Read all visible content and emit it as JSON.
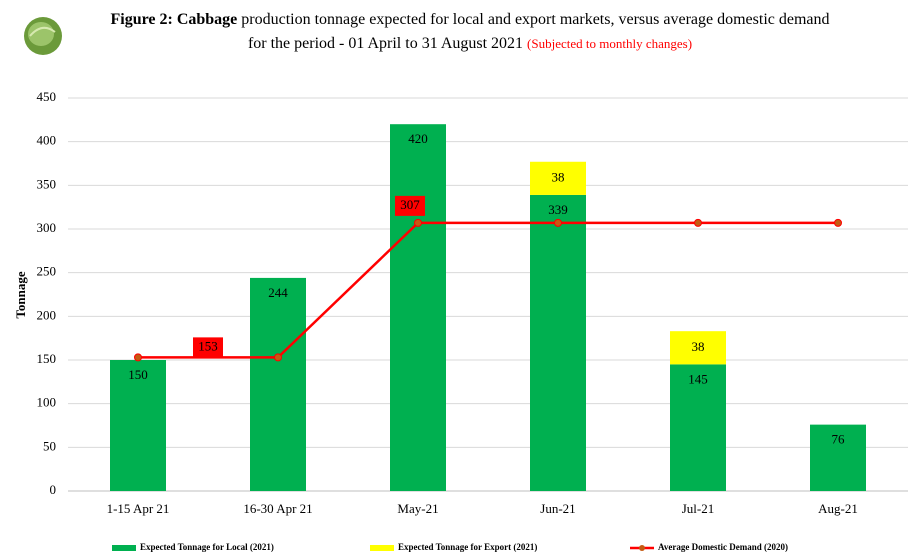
{
  "chart_data": {
    "type": "bar",
    "title": {
      "prefix": "Figure 2: Cabbage",
      "text": "production tonnage expected for local and export markets, versus average domestic demand for the period - 01 April to 31 August 2021",
      "note": "(Subjected to monthly changes)"
    },
    "y_label": "Tonnage",
    "categories": [
      "1-15 Apr 21",
      "16-30 Apr 21",
      "May-21",
      "Jun-21",
      "Jul-21",
      "Aug-21"
    ],
    "series": [
      {
        "name": "Expected Tonnage for Local (2021)",
        "color": "#00b050",
        "type": "bar",
        "values": [
          150,
          244,
          420,
          339,
          145,
          76
        ]
      },
      {
        "name": "Expected Tonnage for Export (2021)",
        "color": "#ffff00",
        "type": "bar",
        "values": [
          null,
          null,
          null,
          38,
          38,
          null
        ]
      },
      {
        "name": "Average Domestic Demand (2020)",
        "color": "#ff0000",
        "marker_color": "#c55a11",
        "type": "line",
        "values": [
          153,
          153,
          307,
          307,
          307,
          307
        ],
        "value_labels": [
          null,
          "153",
          "307",
          null,
          null,
          null
        ]
      }
    ],
    "ylim": [
      0,
      450
    ],
    "yticks": [
      0,
      50,
      100,
      150,
      200,
      250,
      300,
      350,
      400,
      450
    ],
    "grid": true,
    "stacked": true,
    "legend": "bottom"
  }
}
